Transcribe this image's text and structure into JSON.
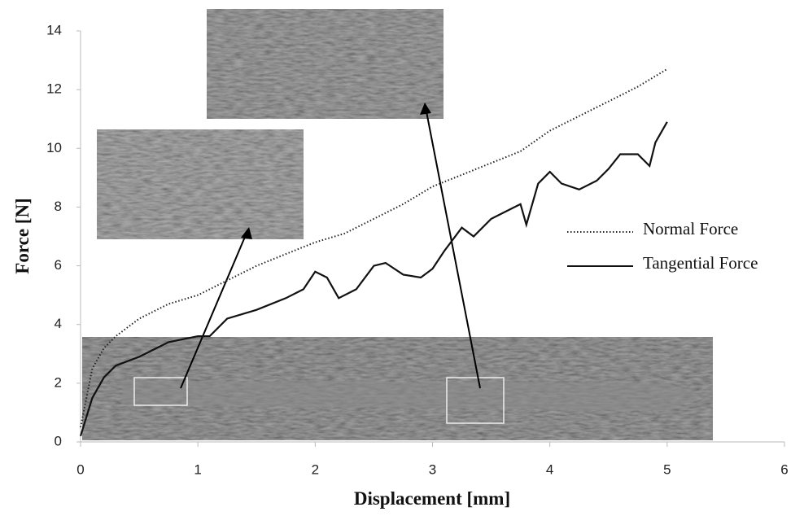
{
  "chart_data": {
    "type": "line",
    "x_label": "Displacement [mm]",
    "y_label": "Force [N]",
    "xlim": [
      0,
      6
    ],
    "xticks": [
      0,
      1,
      2,
      3,
      4,
      5,
      6
    ],
    "ylim": [
      0,
      14
    ],
    "yticks": [
      0,
      2,
      4,
      6,
      8,
      10,
      12,
      14
    ],
    "series": [
      {
        "name": "Normal Force",
        "color": "#222222",
        "style": "dotted",
        "x": [
          0,
          0.1,
          0.2,
          0.3,
          0.5,
          0.75,
          1.0,
          1.25,
          1.5,
          1.75,
          2.0,
          2.25,
          2.5,
          2.75,
          3.0,
          3.25,
          3.5,
          3.75,
          4.0,
          4.25,
          4.5,
          4.75,
          5.0
        ],
        "values": [
          0.5,
          2.5,
          3.2,
          3.6,
          4.2,
          4.7,
          5.0,
          5.5,
          6.0,
          6.4,
          6.8,
          7.1,
          7.6,
          8.1,
          8.7,
          9.1,
          9.5,
          9.9,
          10.6,
          11.1,
          11.6,
          12.1,
          12.7
        ]
      },
      {
        "name": "Tangential Force",
        "color": "#111111",
        "style": "solid",
        "x": [
          0,
          0.1,
          0.2,
          0.3,
          0.5,
          0.75,
          1.0,
          1.1,
          1.25,
          1.5,
          1.75,
          1.9,
          2.0,
          2.1,
          2.2,
          2.35,
          2.5,
          2.6,
          2.75,
          2.9,
          3.0,
          3.1,
          3.25,
          3.35,
          3.5,
          3.6,
          3.75,
          3.8,
          3.9,
          4.0,
          4.1,
          4.25,
          4.4,
          4.5,
          4.6,
          4.75,
          4.85,
          4.9,
          5.0
        ],
        "values": [
          0.2,
          1.5,
          2.2,
          2.6,
          2.9,
          3.4,
          3.6,
          3.6,
          4.2,
          4.5,
          4.9,
          5.2,
          5.8,
          5.6,
          4.9,
          5.2,
          6.0,
          6.1,
          5.7,
          5.6,
          5.9,
          6.5,
          7.3,
          7.0,
          7.6,
          7.8,
          8.1,
          7.4,
          8.8,
          9.2,
          8.8,
          8.6,
          8.9,
          9.3,
          9.8,
          9.8,
          9.4,
          10.2,
          10.9
        ]
      }
    ]
  }
}
